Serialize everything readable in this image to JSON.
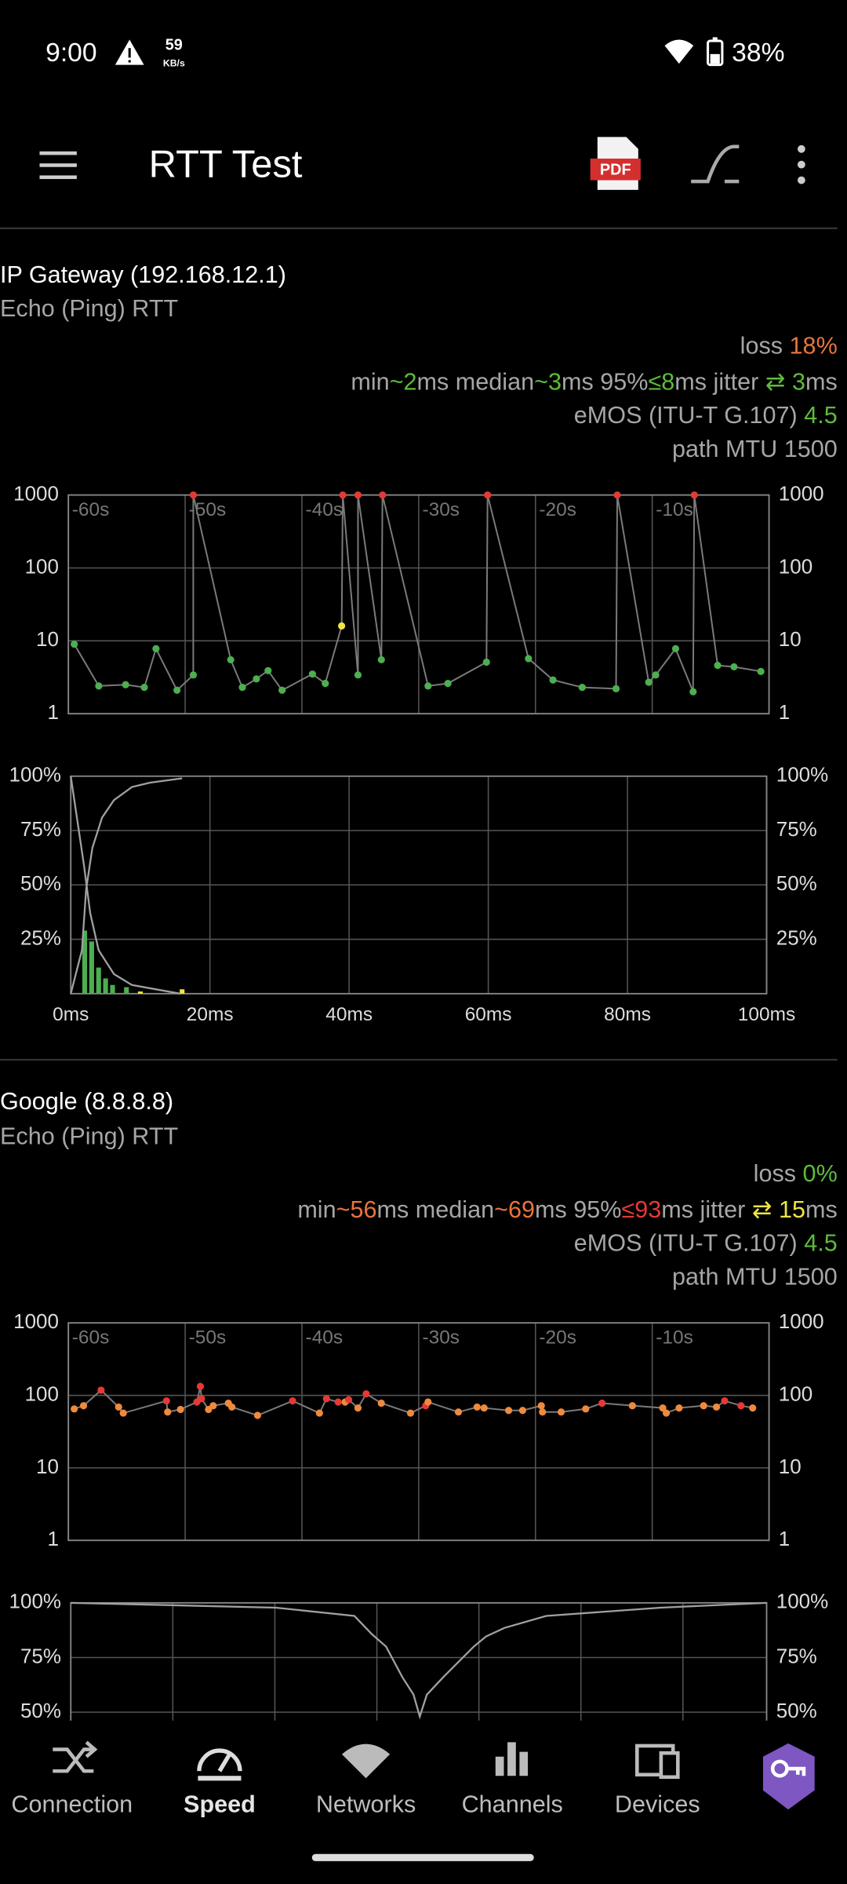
{
  "status_bar": {
    "time": "9:00",
    "speed_value": "59",
    "speed_unit": "KB/s",
    "battery": "38%"
  },
  "toolbar": {
    "title": "RTT Test",
    "pdf_label": "PDF"
  },
  "sections": [
    {
      "host": "IP Gateway (192.168.12.1)",
      "subtitle": "Echo (Ping) RTT",
      "stats": [
        [
          {
            "text": "loss ",
            "color": "#a6a6a6"
          },
          {
            "text": "18%",
            "color": "#e8743b"
          }
        ],
        [
          {
            "text": "min",
            "color": "#a6a6a6"
          },
          {
            "text": "~2",
            "color": "#5dbb3a"
          },
          {
            "text": "ms median",
            "color": "#a6a6a6"
          },
          {
            "text": "~3",
            "color": "#5dbb3a"
          },
          {
            "text": "ms 95%",
            "color": "#a6a6a6"
          },
          {
            "text": "≤8",
            "color": "#5dbb3a"
          },
          {
            "text": "ms jitter ",
            "color": "#a6a6a6"
          },
          {
            "text": "⇄ 3",
            "color": "#5dbb3a"
          },
          {
            "text": "ms",
            "color": "#a6a6a6"
          }
        ],
        [
          {
            "text": "eMOS (ITU-T G.107) ",
            "color": "#a6a6a6"
          },
          {
            "text": "4.5",
            "color": "#5dbb3a"
          }
        ],
        [
          {
            "text": "path MTU 1500",
            "color": "#a6a6a6"
          }
        ]
      ],
      "rtt_chart": {
        "type": "scatter",
        "log_scale": true,
        "grid": true,
        "xlim": [
          -60,
          0
        ],
        "ylim": [
          1,
          1000
        ],
        "yticks": [
          1,
          10,
          100,
          1000
        ],
        "xticks": [
          {
            "value": -60,
            "label": "-60s"
          },
          {
            "value": -50,
            "label": "-50s"
          },
          {
            "value": -40,
            "label": "-40s"
          },
          {
            "value": -30,
            "label": "-30s"
          },
          {
            "value": -20,
            "label": "-20s"
          },
          {
            "value": -10,
            "label": "-10s"
          }
        ],
        "series": [
          {
            "line_color": "#7a7a7a",
            "x": [
              -59.5,
              -57.4,
              -55.1,
              -53.5,
              -52.5,
              -50.7,
              -49.3,
              -49.3,
              -46.1,
              -45.1,
              -43.9,
              -42.9,
              -41.7,
              -39.1,
              -38,
              -36.6,
              -36.5,
              -35.2,
              -35.2,
              -33.2,
              -33.1,
              -29.2,
              -27.5,
              -24.2,
              -24.1,
              -20.6,
              -18.5,
              -16,
              -13.1,
              -13,
              -10.3,
              -9.7,
              -8,
              -6.5,
              -6.4,
              -4.4,
              -3,
              -0.7
            ],
            "values": [
              9,
              2.4,
              2.5,
              2.3,
              7.8,
              2.1,
              3.4,
              1000,
              5.5,
              2.3,
              3,
              3.9,
              2.1,
              3.5,
              2.6,
              16,
              1000,
              3.4,
              1000,
              5.5,
              1000,
              2.4,
              2.6,
              5.1,
              1000,
              5.7,
              2.9,
              2.3,
              2.2,
              1000,
              2.7,
              3.4,
              7.8,
              2,
              1000,
              4.6,
              4.4,
              3.8
            ],
            "colors": [
              "#4caf50",
              "#4caf50",
              "#4caf50",
              "#4caf50",
              "#4caf50",
              "#4caf50",
              "#4caf50",
              "#e53935",
              "#4caf50",
              "#4caf50",
              "#4caf50",
              "#4caf50",
              "#4caf50",
              "#4caf50",
              "#4caf50",
              "#f0e442",
              "#e53935",
              "#4caf50",
              "#e53935",
              "#4caf50",
              "#e53935",
              "#4caf50",
              "#4caf50",
              "#4caf50",
              "#e53935",
              "#4caf50",
              "#4caf50",
              "#4caf50",
              "#4caf50",
              "#e53935",
              "#4caf50",
              "#4caf50",
              "#4caf50",
              "#4caf50",
              "#e53935",
              "#4caf50",
              "#4caf50",
              "#4caf50"
            ]
          }
        ]
      },
      "distribution_chart": {
        "type": "histogram",
        "grid": true,
        "xlim": [
          0,
          100
        ],
        "ylim": [
          0,
          100
        ],
        "xticks": [
          {
            "value": 0,
            "label": "0ms"
          },
          {
            "value": 20,
            "label": "20ms"
          },
          {
            "value": 40,
            "label": "40ms"
          },
          {
            "value": 60,
            "label": "60ms"
          },
          {
            "value": 80,
            "label": "80ms"
          },
          {
            "value": 100,
            "label": "100ms"
          }
        ],
        "yticks": [
          {
            "value": 25,
            "label": "25%"
          },
          {
            "value": 50,
            "label": "50%"
          },
          {
            "value": 75,
            "label": "75%"
          },
          {
            "value": 100,
            "label": "100%"
          }
        ],
        "bars": {
          "x": [
            2,
            3,
            4,
            5,
            6,
            8,
            10,
            16
          ],
          "values": [
            29,
            24,
            12,
            7,
            4,
            3,
            1,
            2
          ],
          "colors": [
            "#4caf50",
            "#4caf50",
            "#4caf50",
            "#4caf50",
            "#4caf50",
            "#4caf50",
            "#f0e442",
            "#f0e442"
          ]
        },
        "lines": [
          {
            "color": "#a0a0a0",
            "x": [
              0,
              1.6,
              2.2,
              3.1,
              4.5,
              6.2,
              8.8,
              11.4,
              16
            ],
            "values": [
              0,
              20,
              48,
              67,
              81,
              89,
              95,
              97,
              99
            ]
          },
          {
            "color": "#a0a0a0",
            "x": [
              0,
              1.9,
              2.8,
              4,
              6.2,
              8.8,
              15.7
            ],
            "values": [
              100,
              59,
              37,
              20,
              9,
              4,
              0
            ]
          }
        ]
      }
    },
    {
      "host": "Google (8.8.8.8)",
      "subtitle": "Echo (Ping) RTT",
      "stats": [
        [
          {
            "text": "loss ",
            "color": "#a6a6a6"
          },
          {
            "text": "0%",
            "color": "#5dbb3a"
          }
        ],
        [
          {
            "text": "min",
            "color": "#a6a6a6"
          },
          {
            "text": "~56",
            "color": "#e8743b"
          },
          {
            "text": "ms median",
            "color": "#a6a6a6"
          },
          {
            "text": "~69",
            "color": "#e8743b"
          },
          {
            "text": "ms 95%",
            "color": "#a6a6a6"
          },
          {
            "text": "≤93",
            "color": "#e53935"
          },
          {
            "text": "ms jitter ",
            "color": "#a6a6a6"
          },
          {
            "text": "⇄ 15",
            "color": "#f0e442"
          },
          {
            "text": "ms",
            "color": "#a6a6a6"
          }
        ],
        [
          {
            "text": "eMOS (ITU-T G.107) ",
            "color": "#a6a6a6"
          },
          {
            "text": "4.5",
            "color": "#5dbb3a"
          }
        ],
        [
          {
            "text": "path MTU 1500",
            "color": "#a6a6a6"
          }
        ]
      ],
      "rtt_chart": {
        "type": "scatter",
        "log_scale": true,
        "grid": true,
        "xlim": [
          -60,
          0
        ],
        "ylim": [
          1,
          1000
        ],
        "yticks": [
          1,
          10,
          100,
          1000
        ],
        "xticks": [
          {
            "value": -60,
            "label": "-60s"
          },
          {
            "value": -50,
            "label": "-50s"
          },
          {
            "value": -40,
            "label": "-40s"
          },
          {
            "value": -30,
            "label": "-30s"
          },
          {
            "value": -20,
            "label": "-20s"
          },
          {
            "value": -10,
            "label": "-10s"
          }
        ],
        "series": [
          {
            "line_color": "#7a7a7a",
            "x": [
              -59.5,
              -58.7,
              -57.2,
              -55.7,
              -55.3,
              -51.6,
              -51.5,
              -50.4,
              -49,
              -48.7,
              -48.6,
              -48,
              -47.6,
              -46.3,
              -46,
              -43.8,
              -40.8,
              -38.5,
              -37.9,
              -36.9,
              -36.3,
              -36,
              -35.2,
              -34.5,
              -33.2,
              -30.7,
              -29.4,
              -29.2,
              -26.6,
              -25,
              -24.4,
              -22.3,
              -21.1,
              -19.5,
              -19.4,
              -17.8,
              -15.7,
              -14.3,
              -11.7,
              -9.1,
              -8.8,
              -7.7,
              -5.6,
              -4.5,
              -3.8,
              -2.4,
              -1.4
            ],
            "values": [
              65,
              72,
              118,
              69,
              57,
              84,
              59,
              64,
              81,
              133,
              90,
              64,
              72,
              78,
              69,
              53,
              84,
              57,
              90,
              81,
              81,
              87,
              67,
              105,
              78,
              57,
              72,
              81,
              59,
              69,
              67,
              62,
              62,
              72,
              59,
              59,
              65,
              78,
              72,
              67,
              57,
              67,
              72,
              69,
              84,
              72,
              67
            ],
            "colors": [
              "#ef8a3c",
              "#ef8a3c",
              "#e53935",
              "#ef8a3c",
              "#ef8a3c",
              "#e53935",
              "#ef8a3c",
              "#ef8a3c",
              "#e53935",
              "#e53935",
              "#e53935",
              "#ef8a3c",
              "#ef8a3c",
              "#ef8a3c",
              "#ef8a3c",
              "#ef8a3c",
              "#e53935",
              "#ef8a3c",
              "#e53935",
              "#e53935",
              "#ef8a3c",
              "#e53935",
              "#ef8a3c",
              "#e53935",
              "#ef8a3c",
              "#ef8a3c",
              "#e53935",
              "#ef8a3c",
              "#ef8a3c",
              "#ef8a3c",
              "#ef8a3c",
              "#ef8a3c",
              "#ef8a3c",
              "#ef8a3c",
              "#ef8a3c",
              "#ef8a3c",
              "#ef8a3c",
              "#e53935",
              "#ef8a3c",
              "#ef8a3c",
              "#ef8a3c",
              "#ef8a3c",
              "#ef8a3c",
              "#ef8a3c",
              "#e53935",
              "#e53935",
              "#ef8a3c"
            ]
          }
        ]
      },
      "distribution_chart": {
        "type": "line",
        "grid": true,
        "xlim": [
          0,
          68.2
        ],
        "ylim": [
          0,
          100
        ],
        "x_grid": [
          10,
          20,
          30,
          40,
          50,
          60
        ],
        "yticks": [
          {
            "value": 50,
            "label": "50%"
          },
          {
            "value": 75,
            "label": "75%"
          },
          {
            "value": 100,
            "label": "100%"
          }
        ],
        "lines": [
          {
            "color": "#a0a0a0",
            "x": [
              0,
              20.1,
              27.8,
              29.5,
              30.9,
              32.5,
              33.6,
              34.2,
              34.9,
              36.6,
              39.5,
              40.7,
              42.5,
              46.6,
              57.8,
              68.2
            ],
            "values": [
              100,
              97.8,
              94,
              85.7,
              80,
              66,
              58,
              48,
              58,
              66.5,
              80,
              84.6,
              88.5,
              94,
              97.8,
              100
            ]
          }
        ]
      }
    }
  ],
  "nav": {
    "items": [
      "Connection",
      "Speed",
      "Networks",
      "Channels",
      "Devices"
    ],
    "selected": 1
  }
}
